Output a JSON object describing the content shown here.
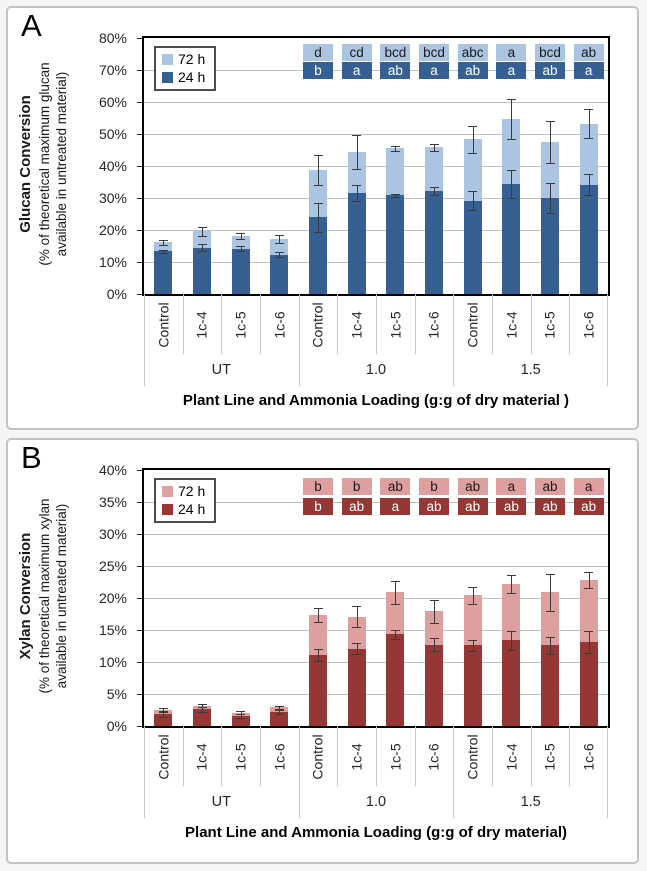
{
  "panels": [
    {
      "letter": "A",
      "legend": [
        {
          "label": "72 h"
        },
        {
          "label": "24 h"
        }
      ],
      "y_axis": {
        "title_bold": "Glucan Conversion",
        "title_line2": "(% of theoretical maximum glucan",
        "title_line3": "available in untreated material)"
      },
      "x_axis": {
        "title": "Plant Line and Ammonia Loading (g:g of dry material )"
      }
    },
    {
      "letter": "B",
      "legend": [
        {
          "label": "72 h"
        },
        {
          "label": "24 h"
        }
      ],
      "y_axis": {
        "title_bold": "Xylan Conversion",
        "title_line2": "(% of theoretical maximum xylan",
        "title_line3": "available in untreated material)"
      },
      "x_axis": {
        "title": "Plant Line and Ammonia Loading (g:g of dry material)"
      }
    }
  ],
  "chart_data": [
    {
      "type": "bar",
      "stacked": "cumulative-overlay",
      "panel": "A",
      "title": "Glucan Conversion",
      "ylabel": "Glucan Conversion (% of theoretical maximum glucan available in untreated material)",
      "xlabel": "Plant Line and Ammonia Loading (g:g of dry material )",
      "ylim": [
        0,
        80
      ],
      "ytick_step": 10,
      "ytick_format": "percent",
      "grid": true,
      "legend_position": "top-left-inside",
      "categories": [
        "Control",
        "1c-4",
        "1c-5",
        "1c-6",
        "Control",
        "1c-4",
        "1c-5",
        "1c-6",
        "Control",
        "1c-4",
        "1c-5",
        "1c-6"
      ],
      "groups": [
        {
          "label": "UT",
          "size": 4
        },
        {
          "label": "1.0",
          "size": 4
        },
        {
          "label": "1.5",
          "size": 4
        }
      ],
      "series": [
        {
          "name": "24 h",
          "color": "#366092",
          "letter_text_color": "#ffffff",
          "values": [
            13.3,
            14.5,
            14.1,
            12.3,
            24.0,
            31.6,
            30.8,
            32.1,
            29.2,
            34.4,
            30.1,
            34.2
          ],
          "errors": [
            0.6,
            1.0,
            0.8,
            0.8,
            4.5,
            2.6,
            0.5,
            1.2,
            2.9,
            4.4,
            4.7,
            3.4
          ],
          "sig_letters": {
            "start_category_index": 4,
            "letters": [
              "b",
              "a",
              "ab",
              "a",
              "ab",
              "a",
              "ab",
              "a"
            ]
          }
        },
        {
          "name": "72 h",
          "color": "#aac4e2",
          "letter_text_color": "#1a1a1a",
          "values": [
            16.1,
            19.6,
            18.2,
            17.1,
            38.7,
            44.4,
            45.6,
            45.8,
            48.3,
            54.7,
            47.5,
            53.2
          ],
          "errors": [
            0.9,
            1.4,
            1.0,
            1.2,
            4.7,
            5.2,
            0.8,
            1.2,
            4.2,
            6.2,
            6.7,
            4.5
          ],
          "sig_letters": {
            "start_category_index": 4,
            "letters": [
              "d",
              "cd",
              "bcd",
              "bcd",
              "abc",
              "a",
              "bcd",
              "ab"
            ]
          }
        }
      ],
      "sig_row_y_percent": {
        "72 h": 75.4,
        "24 h": 69.8
      }
    },
    {
      "type": "bar",
      "stacked": "cumulative-overlay",
      "panel": "B",
      "title": "Xylan Conversion",
      "ylabel": "Xylan Conversion (% of theoretical maximum xylan available in untreated material)",
      "xlabel": "Plant Line and Ammonia Loading (g:g of dry material)",
      "ylim": [
        0,
        40
      ],
      "ytick_step": 5,
      "ytick_format": "percent",
      "grid": true,
      "legend_position": "top-left-inside",
      "categories": [
        "Control",
        "1c-4",
        "1c-5",
        "1c-6",
        "Control",
        "1c-4",
        "1c-5",
        "1c-6",
        "Control",
        "1c-4",
        "1c-5",
        "1c-6"
      ],
      "groups": [
        {
          "label": "UT",
          "size": 4
        },
        {
          "label": "1.0",
          "size": 4
        },
        {
          "label": "1.5",
          "size": 4
        }
      ],
      "series": [
        {
          "name": "24 h",
          "color": "#943735",
          "letter_text_color": "#ffffff",
          "values": [
            1.9,
            2.6,
            1.5,
            2.2,
            11.1,
            12.1,
            14.3,
            12.7,
            12.6,
            13.4,
            12.6,
            13.1
          ],
          "errors": [
            0.5,
            0.4,
            0.3,
            0.3,
            0.9,
            0.8,
            0.7,
            1.0,
            0.9,
            1.5,
            1.3,
            1.7
          ],
          "sig_letters": {
            "start_category_index": 4,
            "letters": [
              "b",
              "ab",
              "a",
              "ab",
              "ab",
              "ab",
              "ab",
              "ab"
            ]
          }
        },
        {
          "name": "72 h",
          "color": "#dda09e",
          "letter_text_color": "#1a1a1a",
          "values": [
            2.5,
            3.2,
            2.1,
            2.9,
            17.4,
            17.1,
            20.9,
            17.9,
            20.4,
            22.2,
            20.9,
            22.8
          ],
          "errors": [
            0.3,
            0.3,
            0.2,
            0.2,
            1.1,
            1.7,
            1.8,
            1.8,
            1.3,
            1.4,
            2.9,
            1.3
          ],
          "sig_letters": {
            "start_category_index": 4,
            "letters": [
              "b",
              "b",
              "ab",
              "b",
              "ab",
              "a",
              "ab",
              "a"
            ]
          }
        }
      ],
      "sig_row_y_percent": {
        "72 h": 37.5,
        "24 h": 34.3
      }
    }
  ]
}
